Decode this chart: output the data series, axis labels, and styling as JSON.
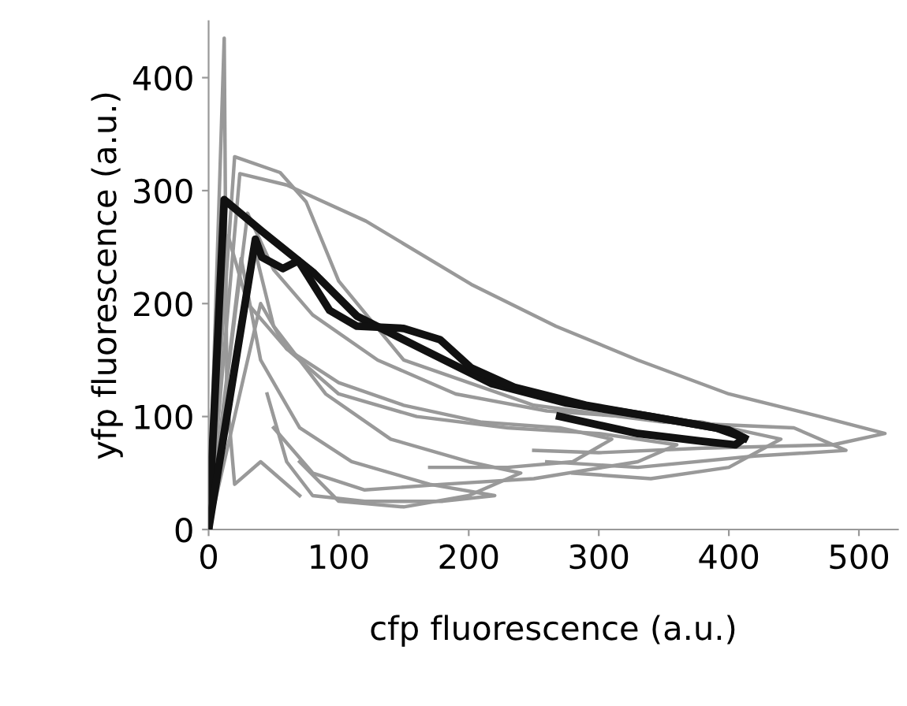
{
  "chart_data": {
    "type": "line",
    "xlabel": "cfp fluorescence (a.u.)",
    "ylabel": "yfp fluorescence (a.u.)",
    "xlim": [
      0,
      530
    ],
    "ylim": [
      0,
      450
    ],
    "xticks": [
      0,
      100,
      200,
      300,
      400,
      500
    ],
    "yticks": [
      0,
      100,
      200,
      300,
      400
    ],
    "grid": false,
    "legend": false,
    "marker": "none",
    "line_style": "solid",
    "series": [
      {
        "color": "#999999",
        "x": [
          0,
          12,
          14,
          20,
          40,
          70
        ],
        "values": [
          0,
          435,
          120,
          40,
          60,
          30
        ]
      },
      {
        "color": "#999999",
        "x": [
          0,
          24,
          60,
          121,
          202,
          267,
          330,
          400,
          470,
          520,
          480,
          380,
          300,
          250
        ],
        "values": [
          0,
          315,
          305,
          273,
          217,
          180,
          150,
          120,
          100,
          85,
          75,
          72,
          68,
          70
        ]
      },
      {
        "color": "#999999",
        "x": [
          0,
          20,
          55,
          75,
          100,
          150,
          250,
          350,
          450,
          490,
          420,
          330,
          260
        ],
        "values": [
          0,
          330,
          316,
          290,
          220,
          150,
          110,
          95,
          90,
          70,
          65,
          55,
          60
        ]
      },
      {
        "color": "#999999",
        "x": [
          0,
          15,
          30,
          60,
          100,
          160,
          230,
          300,
          360,
          330,
          250,
          180,
          120,
          80,
          50
        ],
        "values": [
          0,
          260,
          200,
          160,
          120,
          100,
          90,
          85,
          75,
          60,
          45,
          40,
          35,
          50,
          90
        ]
      },
      {
        "color": "#999999",
        "x": [
          0,
          25,
          40,
          70,
          110,
          170,
          220,
          180,
          120,
          80,
          60,
          45
        ],
        "values": [
          0,
          240,
          150,
          90,
          60,
          40,
          30,
          25,
          25,
          30,
          60,
          120
        ]
      },
      {
        "color": "#999999",
        "x": [
          0,
          30,
          50,
          80,
          130,
          190,
          260,
          320,
          380,
          440,
          400,
          340,
          280
        ],
        "values": [
          0,
          280,
          230,
          190,
          150,
          120,
          105,
          100,
          95,
          80,
          55,
          45,
          50
        ]
      },
      {
        "color": "#999999",
        "x": [
          0,
          35,
          50,
          90,
          140,
          200,
          240,
          200,
          150,
          100,
          70
        ],
        "values": [
          0,
          250,
          180,
          120,
          80,
          60,
          50,
          30,
          20,
          25,
          60
        ]
      },
      {
        "color": "#999999",
        "x": [
          0,
          40,
          60,
          100,
          150,
          210,
          270,
          310,
          280,
          230,
          170
        ],
        "values": [
          0,
          200,
          160,
          130,
          110,
          95,
          90,
          80,
          60,
          55,
          55
        ]
      },
      {
        "color": "#111111",
        "x": [
          0,
          12,
          41,
          81,
          114,
          162,
          218,
          275,
          340,
          390,
          412,
          405,
          380,
          330,
          270
        ],
        "values": [
          0,
          292,
          264,
          227,
          189,
          161,
          129,
          112,
          100,
          90,
          81,
          75,
          78,
          85,
          100
        ]
      },
      {
        "color": "#111111",
        "x": [
          0,
          36,
          41,
          57,
          69,
          93,
          114,
          150,
          178,
          202,
          235,
          290,
          350,
          400,
          412
        ],
        "values": [
          0,
          257,
          241,
          231,
          238,
          194,
          180,
          178,
          168,
          143,
          126,
          110,
          98,
          88,
          81
        ]
      }
    ]
  }
}
